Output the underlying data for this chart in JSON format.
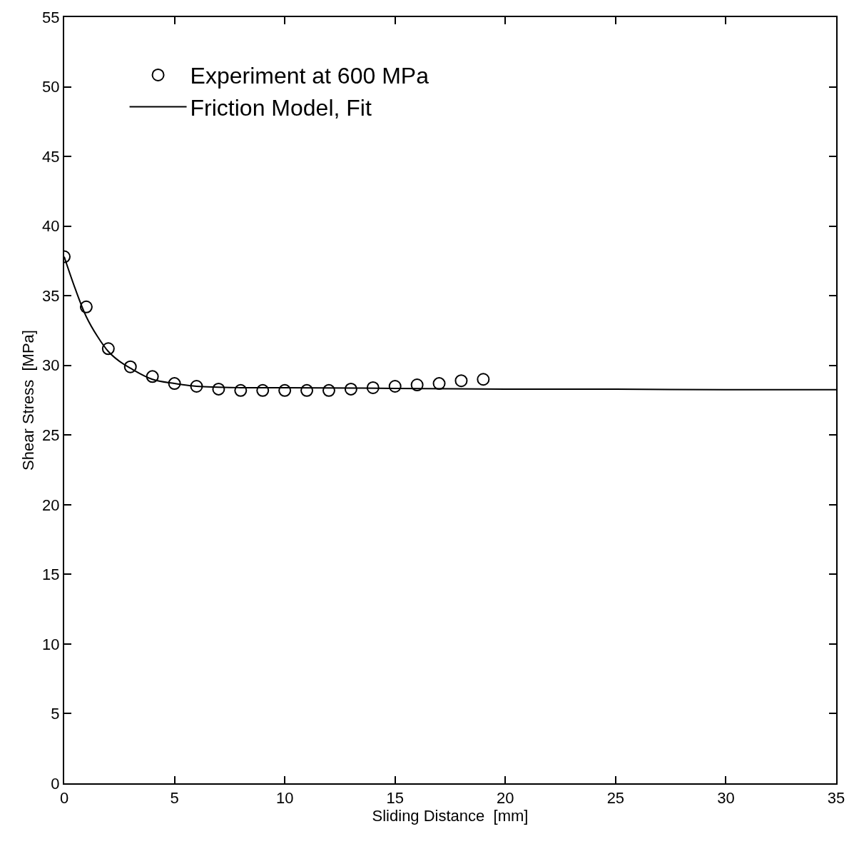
{
  "chart_data": {
    "type": "scatter",
    "xlabel": "Sliding Distance  [mm]",
    "ylabel": "Shear Stress  [MPa]",
    "xlim": [
      0,
      35
    ],
    "ylim": [
      0,
      55
    ],
    "xticks": [
      0,
      5,
      10,
      15,
      20,
      25,
      30,
      35
    ],
    "yticks": [
      0,
      5,
      10,
      15,
      20,
      25,
      30,
      35,
      40,
      45,
      50,
      55
    ],
    "grid": false,
    "legend": "top left",
    "series": [
      {
        "name": "Experiment at 600 MPa",
        "marker": "circle",
        "color": "#000000",
        "x": [
          0,
          1,
          2,
          3,
          4,
          5,
          6,
          7,
          8,
          9,
          10,
          11,
          12,
          13,
          14,
          15,
          16,
          17,
          18,
          19
        ],
        "values": [
          37.8,
          34.2,
          31.2,
          29.9,
          29.2,
          28.7,
          28.5,
          28.3,
          28.2,
          28.2,
          28.2,
          28.2,
          28.2,
          28.3,
          28.4,
          28.5,
          28.6,
          28.7,
          28.9,
          29.0
        ]
      },
      {
        "name": "Friction Model, Fit",
        "type": "line",
        "marker": "none",
        "line_style": "solid",
        "color": "#000000",
        "x": [
          0,
          0.5,
          1,
          1.5,
          2,
          2.5,
          3,
          4,
          5,
          6,
          8,
          10,
          15,
          20,
          25,
          30,
          35
        ],
        "values": [
          37.8,
          35.5,
          33.5,
          32.1,
          31.0,
          30.3,
          29.8,
          29.0,
          28.7,
          28.5,
          28.4,
          28.4,
          28.35,
          28.3,
          28.3,
          28.25,
          28.25
        ]
      }
    ]
  }
}
